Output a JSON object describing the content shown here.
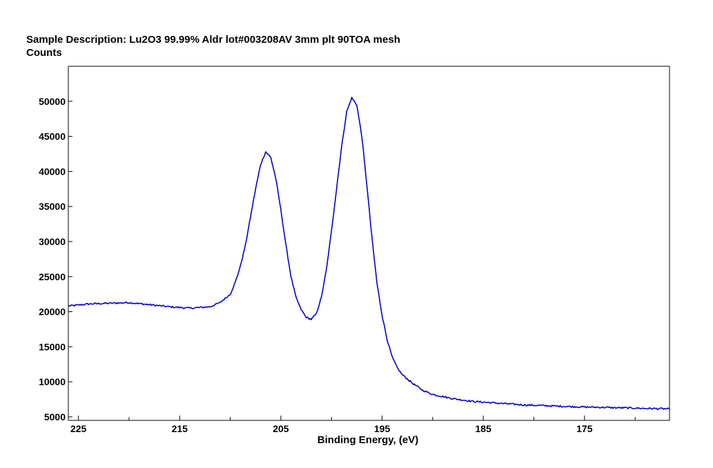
{
  "chart_data": {
    "type": "line",
    "title": "Sample Description:  Lu2O3 99.99% Aldr lot#003208AV 3mm plt 90TOA mesh",
    "ylabel": "Counts",
    "xlabel": "Binding Energy, (eV)",
    "x_reversed": true,
    "xlim": [
      226,
      166.6
    ],
    "ylim": [
      4500,
      55000
    ],
    "x_ticks": [
      225,
      215,
      205,
      195,
      185,
      175
    ],
    "x_tick_labels": [
      "225",
      "215",
      "205",
      "195",
      "185",
      "175"
    ],
    "y_ticks": [
      5000,
      10000,
      15000,
      20000,
      25000,
      30000,
      35000,
      40000,
      45000,
      50000
    ],
    "y_tick_labels": [
      "5000",
      "10000",
      "15000",
      "20000",
      "25000",
      "30000",
      "35000",
      "40000",
      "45000",
      "50000"
    ],
    "grid": false,
    "line_color": "#0000cc",
    "series": [
      {
        "x": [
          226,
          224,
          222,
          220,
          218,
          216,
          214,
          212,
          211,
          210,
          209.5,
          209,
          208.5,
          208,
          207.5,
          207,
          206.5,
          206,
          205.5,
          205,
          204.5,
          204,
          203.5,
          203,
          202.5,
          202,
          201.5,
          201,
          200.5,
          200,
          199.5,
          199,
          198.5,
          198,
          197.5,
          197,
          196.5,
          196,
          195.5,
          195,
          194.5,
          194,
          193.5,
          193,
          192,
          191,
          190,
          189,
          188,
          187,
          186,
          185,
          184,
          183,
          182,
          181,
          180,
          179,
          178,
          177,
          176,
          175,
          174,
          173,
          172,
          171,
          170,
          169,
          168,
          167,
          166.6
        ],
        "y": [
          20800,
          21100,
          21200,
          21300,
          21000,
          20700,
          20500,
          20700,
          21300,
          22500,
          24200,
          26500,
          29500,
          33500,
          37500,
          41000,
          42800,
          42000,
          39000,
          34500,
          29500,
          25000,
          22000,
          20300,
          19200,
          18900,
          19700,
          22000,
          26000,
          31500,
          37500,
          43500,
          48500,
          50500,
          49500,
          45000,
          38000,
          30500,
          24000,
          19500,
          16000,
          13500,
          12000,
          11000,
          9800,
          8800,
          8200,
          7900,
          7600,
          7400,
          7200,
          7100,
          7000,
          6900,
          6800,
          6700,
          6650,
          6600,
          6550,
          6500,
          6450,
          6400,
          6380,
          6350,
          6300,
          6280,
          6250,
          6200,
          6180,
          6150,
          6100
        ]
      }
    ]
  }
}
